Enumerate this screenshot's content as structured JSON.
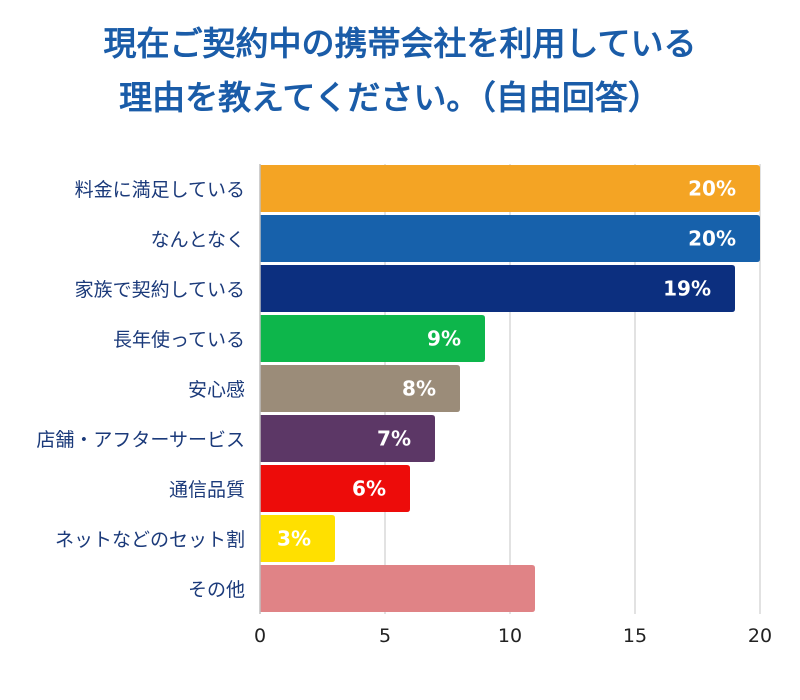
{
  "chart_data": {
    "type": "bar",
    "orientation": "horizontal",
    "title": "現在ご契約中の携帯会社を利用している理由を教えてください。（自由回答）",
    "title_lines": [
      "現在ご契約中の携帯会社を利用している",
      "理由を教えてください。（自由回答）"
    ],
    "categories": [
      "料金に満足している",
      "なんとなく",
      "家族で契約している",
      "長年使っている",
      "安心感",
      "店舗・アフターサービス",
      "通信品質",
      "ネットなどのセット割",
      "その他"
    ],
    "values": [
      20,
      20,
      19,
      9,
      8,
      7,
      6,
      3,
      11
    ],
    "data_labels": [
      "20%",
      "20%",
      "19%",
      "9%",
      "8%",
      "7%",
      "6%",
      "3%",
      ""
    ],
    "colors": [
      "#f4a424",
      "#1761ab",
      "#0c2f7f",
      "#0db64b",
      "#9b8c79",
      "#5c3766",
      "#ed0c0a",
      "#ffe000",
      "#e08386"
    ],
    "xlim": [
      0,
      20
    ],
    "xticks": [
      0,
      5,
      10,
      15,
      20
    ],
    "xtick_labels": [
      "0",
      "5",
      "10",
      "15",
      "20"
    ],
    "xlabel": "",
    "ylabel": "",
    "grid": true,
    "legend": "none"
  }
}
